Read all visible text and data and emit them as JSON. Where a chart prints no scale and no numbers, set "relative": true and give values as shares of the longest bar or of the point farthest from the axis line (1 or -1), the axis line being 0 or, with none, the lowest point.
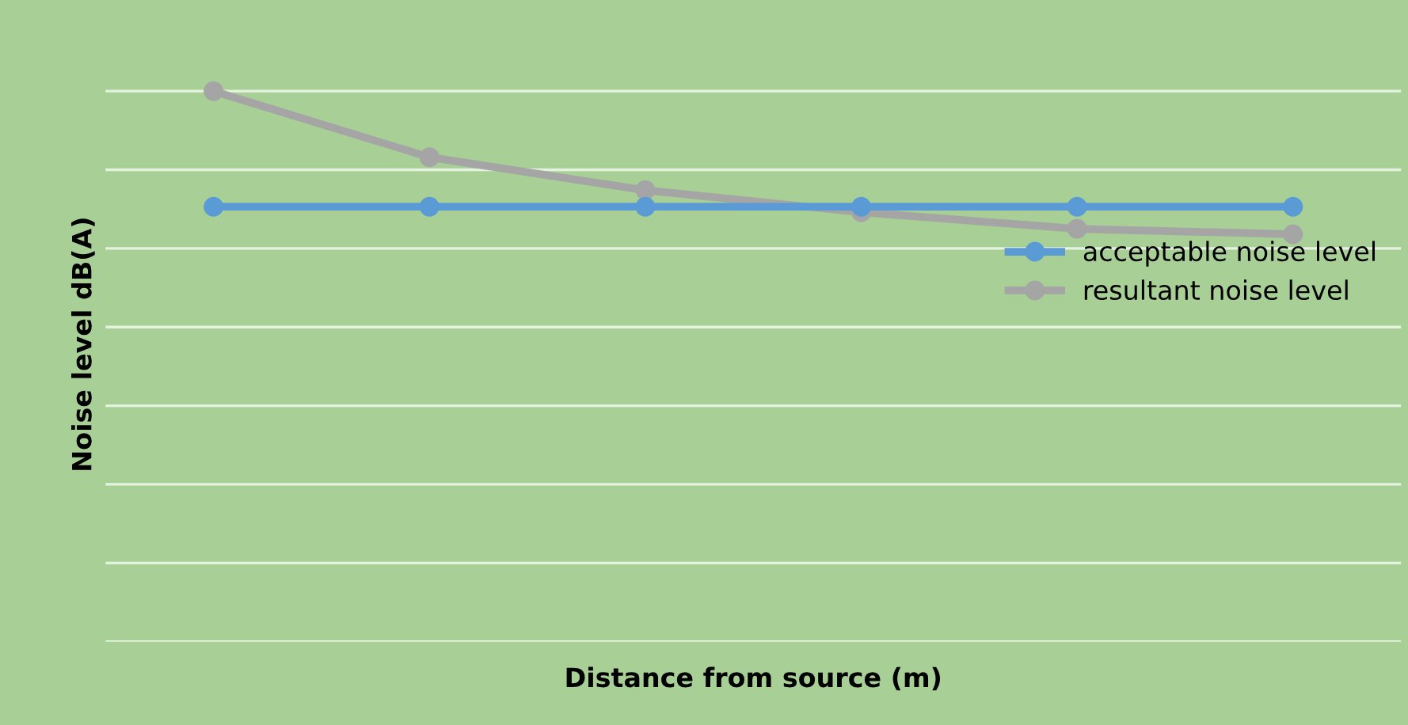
{
  "chart_data": {
    "type": "line",
    "relative": true,
    "xlabel": "Distance from source (m)",
    "ylabel": "Noise level dB(A)",
    "categories": [
      null,
      null,
      null,
      null,
      null,
      null
    ],
    "series": [
      {
        "name": "acceptable noise level",
        "color": "#5b9bd5",
        "values": [
          0.79,
          0.79,
          0.79,
          0.79,
          0.79,
          0.79
        ]
      },
      {
        "name": "resultant noise level",
        "color": "#a5a5a5",
        "values": [
          1.0,
          0.88,
          0.82,
          0.78,
          0.75,
          0.74
        ]
      }
    ],
    "marker": "circle",
    "line_style": "solid",
    "grid": "y",
    "legend": "right"
  }
}
